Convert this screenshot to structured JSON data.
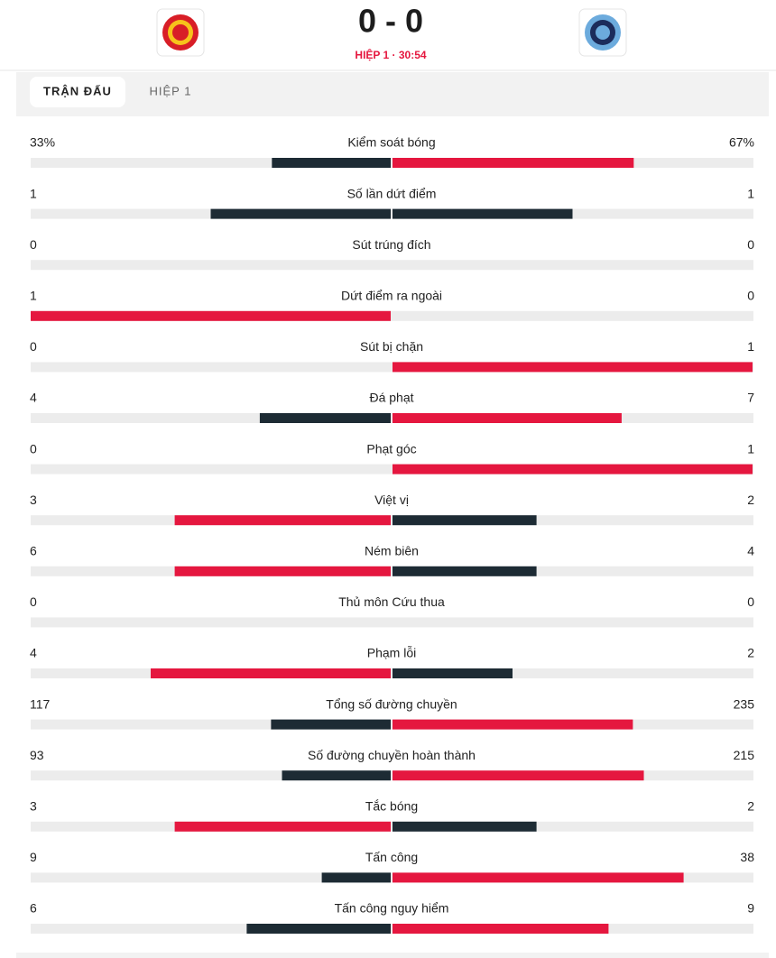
{
  "header": {
    "score": "0 - 0",
    "status": "HIỆP 1 · 30:54"
  },
  "tabs": [
    "TRẬN ĐẤU",
    "HIỆP 1"
  ],
  "stats": [
    {
      "label": "Kiểm soát bóng",
      "home": 33,
      "away": 67,
      "home_label": "33%",
      "away_label": "67%"
    },
    {
      "label": "Số lần dứt điểm",
      "home": 1,
      "away": 1
    },
    {
      "label": "Sút trúng đích",
      "home": 0,
      "away": 0
    },
    {
      "label": "Dứt điểm ra ngoài",
      "home": 1,
      "away": 0
    },
    {
      "label": "Sút bị chặn",
      "home": 0,
      "away": 1
    },
    {
      "label": "Đá phạt",
      "home": 4,
      "away": 7
    },
    {
      "label": "Phạt góc",
      "home": 0,
      "away": 1
    },
    {
      "label": "Việt vị",
      "home": 3,
      "away": 2
    },
    {
      "label": "Ném biên",
      "home": 6,
      "away": 4
    },
    {
      "label": "Thủ môn Cứu thua",
      "home": 0,
      "away": 0
    },
    {
      "label": "Phạm lỗi",
      "home": 4,
      "away": 2
    },
    {
      "label": "Tổng số đường chuyền",
      "home": 117,
      "away": 235
    },
    {
      "label": "Số đường chuyền hoàn thành",
      "home": 93,
      "away": 215
    },
    {
      "label": "Tắc bóng",
      "home": 3,
      "away": 2
    },
    {
      "label": "Tấn công",
      "home": 9,
      "away": 38
    },
    {
      "label": "Tấn công nguy hiểm",
      "home": 6,
      "away": 9
    }
  ]
}
